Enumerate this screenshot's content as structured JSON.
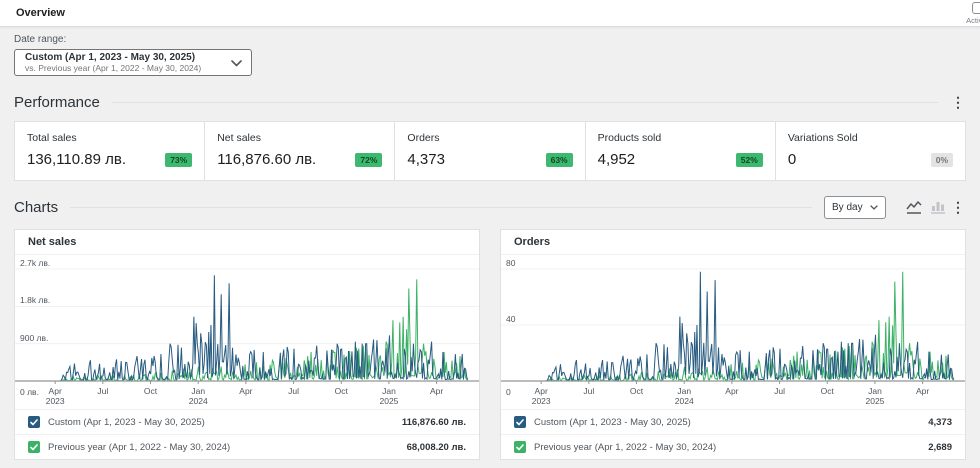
{
  "header": {
    "title": "Overview",
    "activity_label": "Activity"
  },
  "date_range": {
    "label": "Date range:",
    "primary": "Custom (Apr 1, 2023 - May 30, 2025)",
    "secondary": "vs. Previous year (Apr 1, 2022 - May 30, 2024)"
  },
  "performance": {
    "title": "Performance",
    "stats": [
      {
        "label": "Total sales",
        "value": "136,110.89 лв.",
        "delta": "73%",
        "positive": true
      },
      {
        "label": "Net sales",
        "value": "116,876.60 лв.",
        "delta": "72%",
        "positive": true
      },
      {
        "label": "Orders",
        "value": "4,373",
        "delta": "63%",
        "positive": true
      },
      {
        "label": "Products sold",
        "value": "4,952",
        "delta": "52%",
        "positive": true
      },
      {
        "label": "Variations Sold",
        "value": "0",
        "delta": "0%",
        "positive": false
      }
    ]
  },
  "charts_section": {
    "title": "Charts",
    "interval": "By day"
  },
  "colors": {
    "current": "#275b80",
    "previous": "#3bb266",
    "grid": "#f0f0f1",
    "axis": "#949494"
  },
  "chart_data": [
    {
      "type": "line",
      "title": "Net sales",
      "unit": "лв.",
      "y_max": 2700,
      "y_ticks": [
        {
          "v": 2700,
          "label": "2.7k лв."
        },
        {
          "v": 1800,
          "label": "1.8k лв."
        },
        {
          "v": 900,
          "label": "900 лв."
        },
        {
          "v": 0,
          "label": "0 лв."
        }
      ],
      "x_ticks": [
        {
          "m": 0,
          "label": "Apr\n2023"
        },
        {
          "m": 3,
          "label": "Jul"
        },
        {
          "m": 6,
          "label": "Oct"
        },
        {
          "m": 9,
          "label": "Jan\n2024"
        },
        {
          "m": 12,
          "label": "Apr"
        },
        {
          "m": 15,
          "label": "Jul"
        },
        {
          "m": 18,
          "label": "Oct"
        },
        {
          "m": 21,
          "label": "Jan\n2025"
        },
        {
          "m": 24,
          "label": "Apr"
        }
      ],
      "series": [
        {
          "name": "Custom (Apr 1, 2023 - May 30, 2025)",
          "total": "116,876.60 лв.",
          "color": "#275b80",
          "monthly_peaks": [
            350,
            420,
            500,
            520,
            480,
            600,
            650,
            900,
            1550,
            1350,
            2550,
            800,
            750,
            700,
            820,
            780,
            850,
            900,
            950,
            900,
            1000,
            1100,
            900,
            950,
            700,
            650
          ]
        },
        {
          "name": "Previous year (Apr 1, 2022 - May 30, 2024)",
          "total": "68,008.20 лв.",
          "color": "#3bb266",
          "monthly_peaks": [
            90,
            110,
            120,
            130,
            140,
            160,
            200,
            250,
            300,
            350,
            350,
            400,
            450,
            500,
            550,
            600,
            700,
            750,
            800,
            850,
            950,
            1550,
            2450,
            900,
            700,
            600
          ]
        }
      ]
    },
    {
      "type": "line",
      "title": "Orders",
      "unit": "",
      "y_max": 80,
      "y_ticks": [
        {
          "v": 80,
          "label": "80"
        },
        {
          "v": 40,
          "label": "40"
        },
        {
          "v": 0,
          "label": "0"
        }
      ],
      "x_ticks": [
        {
          "m": 0,
          "label": "Apr\n2023"
        },
        {
          "m": 3,
          "label": "Jul"
        },
        {
          "m": 6,
          "label": "Oct"
        },
        {
          "m": 9,
          "label": "Jan\n2024"
        },
        {
          "m": 12,
          "label": "Apr"
        },
        {
          "m": 15,
          "label": "Jul"
        },
        {
          "m": 18,
          "label": "Oct"
        },
        {
          "m": 21,
          "label": "Jan\n2025"
        },
        {
          "m": 24,
          "label": "Apr"
        }
      ],
      "series": [
        {
          "name": "Custom (Apr 1, 2023 - May 30, 2025)",
          "total": "4,373",
          "color": "#275b80",
          "monthly_peaks": [
            10,
            12,
            15,
            15,
            14,
            18,
            19,
            27,
            46,
            40,
            78,
            24,
            22,
            21,
            24,
            23,
            25,
            27,
            28,
            27,
            30,
            33,
            27,
            28,
            21,
            19
          ]
        },
        {
          "name": "Previous year (Apr 1, 2022 - May 30, 2024)",
          "total": "2,689",
          "color": "#3bb266",
          "monthly_peaks": [
            3,
            3,
            4,
            4,
            4,
            5,
            6,
            7,
            9,
            10,
            10,
            12,
            13,
            15,
            16,
            18,
            21,
            22,
            24,
            25,
            28,
            46,
            78,
            27,
            21,
            18
          ]
        }
      ]
    }
  ]
}
